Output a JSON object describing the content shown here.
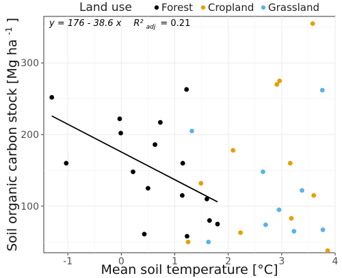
{
  "chart_data": {
    "type": "scatter",
    "xlabel": "Mean soil temperature [°C]",
    "ylabel_main": "Soil organic carbon stock [Mg ha",
    "ylabel_sup": "-1",
    "ylabel_end": "]",
    "xlim": [
      -1.45,
      4.0
    ],
    "ylim": [
      35,
      365
    ],
    "x_ticks": [
      -1,
      0,
      1,
      2,
      3,
      4
    ],
    "y_ticks": [
      100,
      200,
      300
    ],
    "x_tick_labels": [
      "-1",
      "0",
      "1",
      "2",
      "3",
      "4"
    ],
    "y_tick_labels": [
      "100",
      "200",
      "300"
    ],
    "grid": true,
    "legend": {
      "title": "Land use",
      "placement": "top",
      "entries": [
        "Forest",
        "Cropland",
        "Grassland"
      ]
    },
    "annotation": {
      "equation": "y = 176 - 38.6 x",
      "r2_symbol": "R²",
      "r2_sub": "adj",
      "r2_value": "= 0.21"
    },
    "trend_line": {
      "x": [
        -1.3,
        1.8
      ],
      "y": [
        226,
        106
      ],
      "color": "#000000"
    },
    "series": [
      {
        "name": "Forest",
        "color": "#000000",
        "points": [
          [
            -1.3,
            252
          ],
          [
            -1.03,
            160
          ],
          [
            -0.03,
            222
          ],
          [
            -0.01,
            202
          ],
          [
            0.22,
            148
          ],
          [
            0.5,
            125
          ],
          [
            0.63,
            186
          ],
          [
            0.73,
            217
          ],
          [
            1.15,
            160
          ],
          [
            1.14,
            115
          ],
          [
            1.22,
            263
          ],
          [
            1.23,
            58
          ],
          [
            0.43,
            61
          ],
          [
            1.6,
            110
          ],
          [
            1.65,
            80
          ],
          [
            1.8,
            75
          ]
        ]
      },
      {
        "name": "Cropland",
        "color": "#e69f00",
        "points": [
          [
            1.25,
            50
          ],
          [
            1.49,
            132
          ],
          [
            2.09,
            178
          ],
          [
            2.23,
            63
          ],
          [
            2.91,
            270
          ],
          [
            2.96,
            275
          ],
          [
            3.16,
            160
          ],
          [
            3.18,
            83
          ],
          [
            3.58,
            355
          ],
          [
            3.6,
            115
          ],
          [
            3.86,
            38
          ]
        ]
      },
      {
        "name": "Grassland",
        "color": "#56b4e9",
        "points": [
          [
            1.32,
            205
          ],
          [
            1.63,
            50
          ],
          [
            2.65,
            148
          ],
          [
            2.7,
            74
          ],
          [
            2.95,
            95
          ],
          [
            3.23,
            65
          ],
          [
            3.38,
            122
          ],
          [
            3.76,
            262
          ],
          [
            3.77,
            67
          ]
        ]
      }
    ]
  }
}
